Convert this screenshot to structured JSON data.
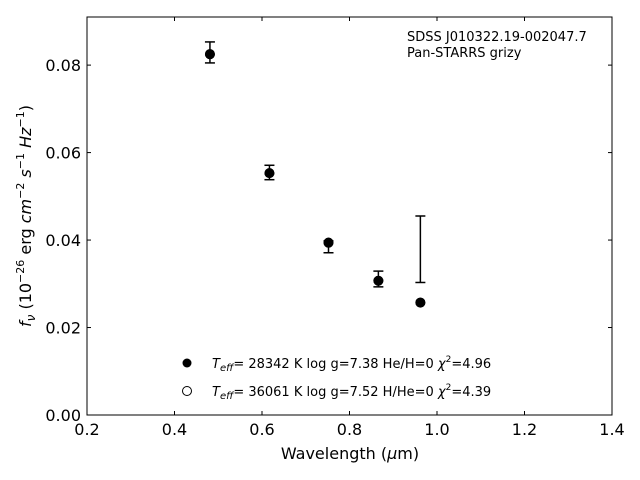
{
  "chart_data": {
    "type": "scatter",
    "xlabel_pre": "Wavelength (",
    "xlabel_mu": "μ",
    "xlabel_post": "m)",
    "ylabel_f": "f",
    "ylabel_nu": "ν",
    "ylabel_open": " (10",
    "ylabel_exp1": "−26",
    "ylabel_erg": " erg ",
    "ylabel_cm": "cm",
    "ylabel_exp2": "−2",
    "ylabel_s": " s",
    "ylabel_exp3": "−1",
    "ylabel_hz": " Hz",
    "ylabel_exp4": "−1",
    "ylabel_close": ")",
    "xlim": [
      0.2,
      1.4
    ],
    "ylim": [
      0.0,
      0.091
    ],
    "xticks": [
      0.2,
      0.4,
      0.6,
      0.8,
      1.0,
      1.2,
      1.4
    ],
    "xtick_labels": [
      "0.2",
      "0.4",
      "0.6",
      "0.8",
      "1.0",
      "1.2",
      "1.4"
    ],
    "yticks": [
      0.0,
      0.02,
      0.04,
      0.06,
      0.08
    ],
    "ytick_labels": [
      "0.00",
      "0.02",
      "0.04",
      "0.06",
      "0.08"
    ],
    "grid": false,
    "annotation": [
      "SDSS J010322.19-002047.7",
      "Pan-STARRS grizy"
    ],
    "observed": {
      "x": [
        0.481,
        0.617,
        0.752,
        0.866,
        0.962
      ],
      "y": [
        0.0829,
        0.0554,
        0.0391,
        0.0311,
        null
      ],
      "err_low": [
        0.0805,
        0.0538,
        0.0371,
        0.0293,
        0.0303
      ],
      "err_high": [
        0.0853,
        0.0571,
        0.0398,
        0.0329,
        0.0455
      ]
    },
    "series": [
      {
        "marker": "filled-circle",
        "x": [
          0.481,
          0.617,
          0.752,
          0.866,
          0.962
        ],
        "y": [
          0.0825,
          0.0553,
          0.0394,
          0.0307,
          0.0257
        ],
        "teff_value": "= 28342 K  log g=7.38  He/H=0  ",
        "chi_value": "=4.96"
      },
      {
        "marker": "open-circle",
        "x": [
          0.481,
          0.617,
          0.752,
          0.866,
          0.962
        ],
        "y": [
          0.0825,
          0.0553,
          0.0394,
          0.0307,
          0.0257
        ],
        "teff_value": "= 36061 K  log g=7.52  H/He=0  ",
        "chi_value": "=4.39"
      }
    ],
    "legend_teff_T": "T",
    "legend_teff_sub": "eff",
    "legend_chi": "χ",
    "legend_chi_sup": "2",
    "legend_placement": "lower-center",
    "colors": {
      "marker": "#000000",
      "axes": "#000000",
      "background": "#ffffff"
    }
  }
}
